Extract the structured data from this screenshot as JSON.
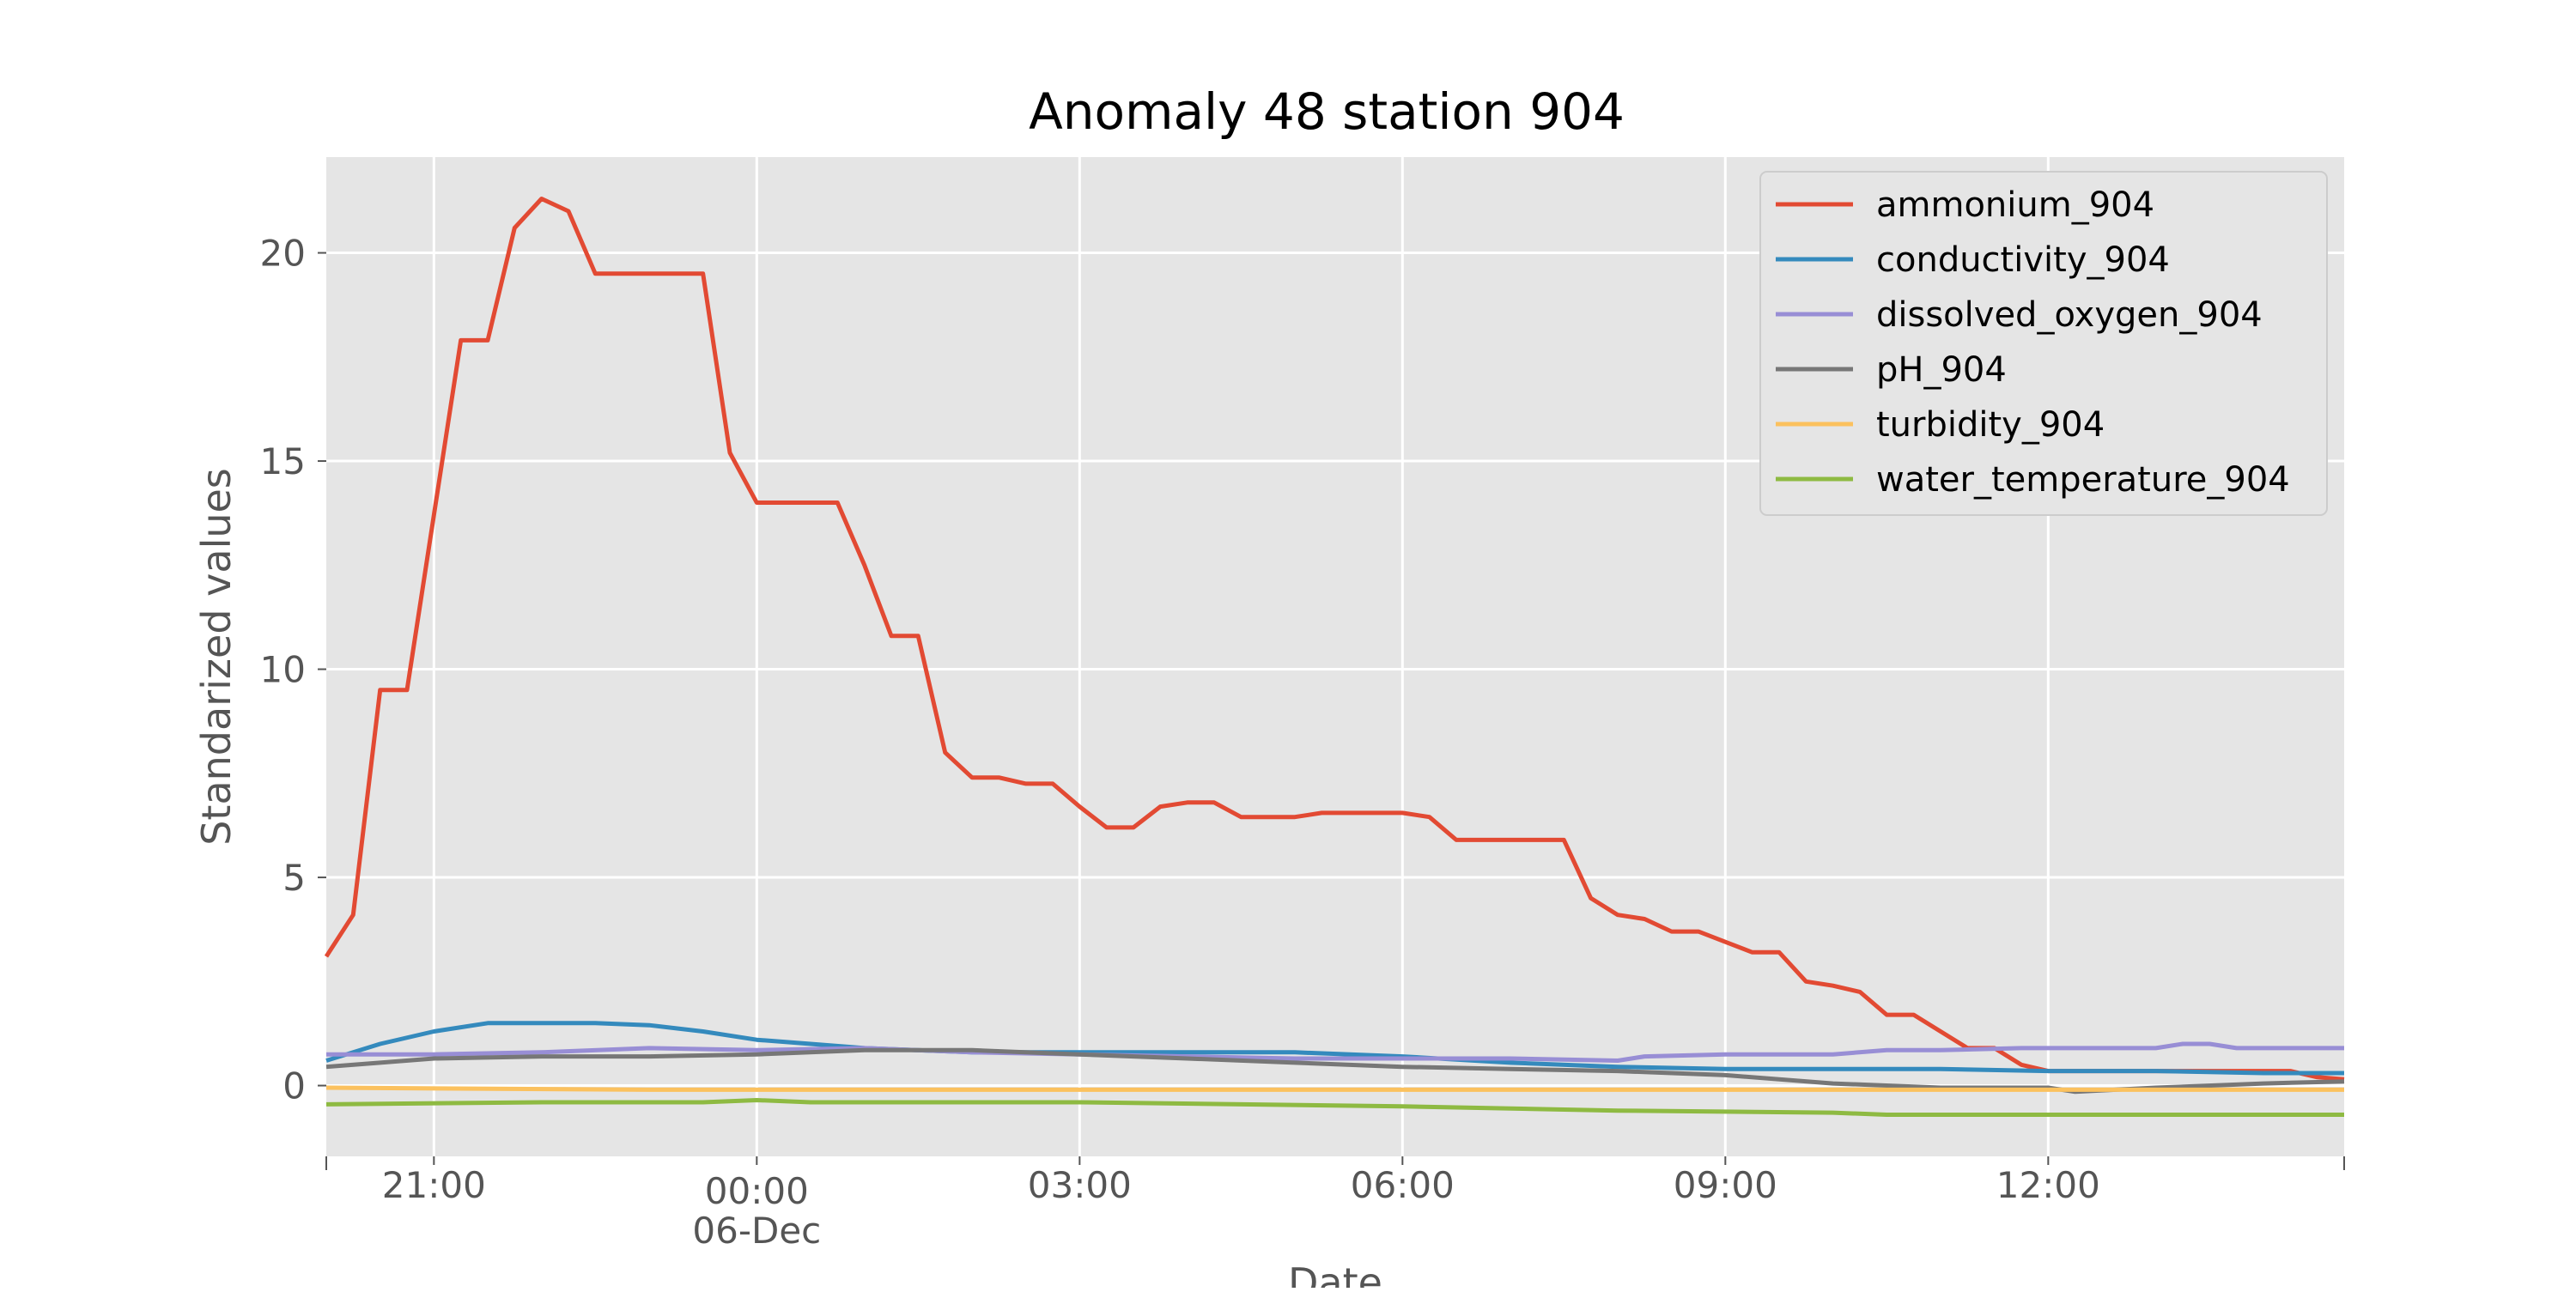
{
  "chart_data": {
    "type": "line",
    "title": "Anomaly 48 station 904",
    "xlabel": "Date",
    "ylabel": "Standarized values",
    "x_range": [
      "2021-12-05 20:00",
      "2021-12-06 14:45"
    ],
    "ylim": [
      -1.7,
      22.3
    ],
    "grid": true,
    "legend_position": "top-right",
    "x_ticks": [
      {
        "x": "2021-12-05 21:00",
        "label": "21:00",
        "sublabel": ""
      },
      {
        "x": "2021-12-06 00:00",
        "label": "00:00",
        "sublabel": "06-Dec"
      },
      {
        "x": "2021-12-06 03:00",
        "label": "03:00",
        "sublabel": ""
      },
      {
        "x": "2021-12-06 06:00",
        "label": "06:00",
        "sublabel": ""
      },
      {
        "x": "2021-12-06 09:00",
        "label": "09:00",
        "sublabel": ""
      },
      {
        "x": "2021-12-06 12:00",
        "label": "12:00",
        "sublabel": ""
      }
    ],
    "y_ticks": [
      0,
      5,
      10,
      15,
      20
    ],
    "series": [
      {
        "name": "ammonium_904",
        "color": "#E24A33",
        "points": [
          [
            "2021-12-05 20:00",
            3.1
          ],
          [
            "2021-12-05 20:15",
            4.1
          ],
          [
            "2021-12-05 20:30",
            9.5
          ],
          [
            "2021-12-05 20:45",
            9.5
          ],
          [
            "2021-12-05 21:00",
            13.7
          ],
          [
            "2021-12-05 21:15",
            17.9
          ],
          [
            "2021-12-05 21:30",
            17.9
          ],
          [
            "2021-12-05 21:45",
            20.6
          ],
          [
            "2021-12-05 22:00",
            21.3
          ],
          [
            "2021-12-05 22:15",
            21.0
          ],
          [
            "2021-12-05 22:30",
            19.5
          ],
          [
            "2021-12-05 22:45",
            19.5
          ],
          [
            "2021-12-05 23:00",
            19.5
          ],
          [
            "2021-12-05 23:15",
            19.5
          ],
          [
            "2021-12-05 23:30",
            19.5
          ],
          [
            "2021-12-05 23:45",
            15.2
          ],
          [
            "2021-12-06 00:00",
            14.0
          ],
          [
            "2021-12-06 00:15",
            14.0
          ],
          [
            "2021-12-06 00:30",
            14.0
          ],
          [
            "2021-12-06 00:45",
            14.0
          ],
          [
            "2021-12-06 01:00",
            12.5
          ],
          [
            "2021-12-06 01:15",
            10.8
          ],
          [
            "2021-12-06 01:30",
            10.8
          ],
          [
            "2021-12-06 01:45",
            8.0
          ],
          [
            "2021-12-06 02:00",
            7.4
          ],
          [
            "2021-12-06 02:15",
            7.4
          ],
          [
            "2021-12-06 02:30",
            7.25
          ],
          [
            "2021-12-06 02:45",
            7.25
          ],
          [
            "2021-12-06 03:00",
            6.7
          ],
          [
            "2021-12-06 03:15",
            6.2
          ],
          [
            "2021-12-06 03:30",
            6.2
          ],
          [
            "2021-12-06 03:45",
            6.7
          ],
          [
            "2021-12-06 04:00",
            6.8
          ],
          [
            "2021-12-06 04:15",
            6.8
          ],
          [
            "2021-12-06 04:30",
            6.45
          ],
          [
            "2021-12-06 04:45",
            6.45
          ],
          [
            "2021-12-06 05:00",
            6.45
          ],
          [
            "2021-12-06 05:15",
            6.55
          ],
          [
            "2021-12-06 05:30",
            6.55
          ],
          [
            "2021-12-06 05:45",
            6.55
          ],
          [
            "2021-12-06 06:00",
            6.55
          ],
          [
            "2021-12-06 06:15",
            6.45
          ],
          [
            "2021-12-06 06:30",
            5.9
          ],
          [
            "2021-12-06 06:45",
            5.9
          ],
          [
            "2021-12-06 07:00",
            5.9
          ],
          [
            "2021-12-06 07:15",
            5.9
          ],
          [
            "2021-12-06 07:30",
            5.9
          ],
          [
            "2021-12-06 07:45",
            4.5
          ],
          [
            "2021-12-06 08:00",
            4.1
          ],
          [
            "2021-12-06 08:15",
            4.0
          ],
          [
            "2021-12-06 08:30",
            3.7
          ],
          [
            "2021-12-06 08:45",
            3.7
          ],
          [
            "2021-12-06 09:00",
            3.45
          ],
          [
            "2021-12-06 09:15",
            3.2
          ],
          [
            "2021-12-06 09:30",
            3.2
          ],
          [
            "2021-12-06 09:45",
            2.5
          ],
          [
            "2021-12-06 10:00",
            2.4
          ],
          [
            "2021-12-06 10:15",
            2.25
          ],
          [
            "2021-12-06 10:30",
            1.7
          ],
          [
            "2021-12-06 10:45",
            1.7
          ],
          [
            "2021-12-06 11:00",
            1.3
          ],
          [
            "2021-12-06 11:15",
            0.9
          ],
          [
            "2021-12-06 11:30",
            0.9
          ],
          [
            "2021-12-06 11:45",
            0.5
          ],
          [
            "2021-12-06 12:00",
            0.35
          ],
          [
            "2021-12-06 12:15",
            0.35
          ],
          [
            "2021-12-06 12:30",
            0.35
          ],
          [
            "2021-12-06 12:45",
            0.35
          ],
          [
            "2021-12-06 13:00",
            0.35
          ],
          [
            "2021-12-06 13:15",
            0.35
          ],
          [
            "2021-12-06 13:30",
            0.35
          ],
          [
            "2021-12-06 13:45",
            0.35
          ],
          [
            "2021-12-06 14:00",
            0.35
          ],
          [
            "2021-12-06 14:15",
            0.35
          ],
          [
            "2021-12-06 14:30",
            0.2
          ],
          [
            "2021-12-06 14:45",
            0.15
          ]
        ]
      },
      {
        "name": "conductivity_904",
        "color": "#348ABD",
        "points": [
          [
            "2021-12-05 20:00",
            0.6
          ],
          [
            "2021-12-05 20:30",
            1.0
          ],
          [
            "2021-12-05 21:00",
            1.3
          ],
          [
            "2021-12-05 21:30",
            1.5
          ],
          [
            "2021-12-05 22:00",
            1.5
          ],
          [
            "2021-12-05 22:30",
            1.5
          ],
          [
            "2021-12-05 23:00",
            1.45
          ],
          [
            "2021-12-05 23:30",
            1.3
          ],
          [
            "2021-12-06 00:00",
            1.1
          ],
          [
            "2021-12-06 00:30",
            1.0
          ],
          [
            "2021-12-06 01:00",
            0.9
          ],
          [
            "2021-12-06 02:00",
            0.8
          ],
          [
            "2021-12-06 03:00",
            0.8
          ],
          [
            "2021-12-06 04:00",
            0.8
          ],
          [
            "2021-12-06 05:00",
            0.8
          ],
          [
            "2021-12-06 06:00",
            0.7
          ],
          [
            "2021-12-06 07:00",
            0.55
          ],
          [
            "2021-12-06 08:00",
            0.45
          ],
          [
            "2021-12-06 09:00",
            0.4
          ],
          [
            "2021-12-06 10:00",
            0.4
          ],
          [
            "2021-12-06 11:00",
            0.4
          ],
          [
            "2021-12-06 12:00",
            0.35
          ],
          [
            "2021-12-06 13:00",
            0.35
          ],
          [
            "2021-12-06 14:00",
            0.3
          ],
          [
            "2021-12-06 14:45",
            0.3
          ]
        ]
      },
      {
        "name": "dissolved_oxygen_904",
        "color": "#988ED5",
        "points": [
          [
            "2021-12-05 20:00",
            0.75
          ],
          [
            "2021-12-05 21:00",
            0.75
          ],
          [
            "2021-12-05 22:00",
            0.8
          ],
          [
            "2021-12-05 23:00",
            0.9
          ],
          [
            "2021-12-06 00:00",
            0.85
          ],
          [
            "2021-12-06 01:00",
            0.9
          ],
          [
            "2021-12-06 02:00",
            0.8
          ],
          [
            "2021-12-06 03:00",
            0.75
          ],
          [
            "2021-12-06 04:00",
            0.7
          ],
          [
            "2021-12-06 05:00",
            0.65
          ],
          [
            "2021-12-06 06:00",
            0.65
          ],
          [
            "2021-12-06 07:00",
            0.65
          ],
          [
            "2021-12-06 08:00",
            0.6
          ],
          [
            "2021-12-06 08:15",
            0.7
          ],
          [
            "2021-12-06 09:00",
            0.75
          ],
          [
            "2021-12-06 10:00",
            0.75
          ],
          [
            "2021-12-06 10:30",
            0.85
          ],
          [
            "2021-12-06 11:00",
            0.85
          ],
          [
            "2021-12-06 11:45",
            0.9
          ],
          [
            "2021-12-06 13:00",
            0.9
          ],
          [
            "2021-12-06 13:15",
            1.0
          ],
          [
            "2021-12-06 13:30",
            1.0
          ],
          [
            "2021-12-06 13:45",
            0.9
          ],
          [
            "2021-12-06 14:45",
            0.9
          ]
        ]
      },
      {
        "name": "pH_904",
        "color": "#777777",
        "points": [
          [
            "2021-12-05 20:00",
            0.45
          ],
          [
            "2021-12-05 20:30",
            0.55
          ],
          [
            "2021-12-05 21:00",
            0.65
          ],
          [
            "2021-12-05 22:00",
            0.7
          ],
          [
            "2021-12-05 23:00",
            0.7
          ],
          [
            "2021-12-06 00:00",
            0.75
          ],
          [
            "2021-12-06 01:00",
            0.85
          ],
          [
            "2021-12-06 02:00",
            0.85
          ],
          [
            "2021-12-06 03:00",
            0.75
          ],
          [
            "2021-12-06 04:00",
            0.65
          ],
          [
            "2021-12-06 05:00",
            0.55
          ],
          [
            "2021-12-06 06:00",
            0.45
          ],
          [
            "2021-12-06 07:00",
            0.4
          ],
          [
            "2021-12-06 08:00",
            0.35
          ],
          [
            "2021-12-06 09:00",
            0.25
          ],
          [
            "2021-12-06 10:00",
            0.05
          ],
          [
            "2021-12-06 11:00",
            -0.05
          ],
          [
            "2021-12-06 12:00",
            -0.05
          ],
          [
            "2021-12-06 12:15",
            -0.15
          ],
          [
            "2021-12-06 13:00",
            -0.05
          ],
          [
            "2021-12-06 14:00",
            0.05
          ],
          [
            "2021-12-06 14:45",
            0.1
          ]
        ]
      },
      {
        "name": "turbidity_904",
        "color": "#FBC15E",
        "points": [
          [
            "2021-12-05 20:00",
            -0.05
          ],
          [
            "2021-12-05 23:00",
            -0.1
          ],
          [
            "2021-12-06 02:00",
            -0.1
          ],
          [
            "2021-12-06 06:00",
            -0.1
          ],
          [
            "2021-12-06 10:00",
            -0.1
          ],
          [
            "2021-12-06 12:00",
            -0.1
          ],
          [
            "2021-12-06 14:45",
            -0.1
          ]
        ]
      },
      {
        "name": "water_temperature_904",
        "color": "#8EBA42",
        "points": [
          [
            "2021-12-05 20:00",
            -0.45
          ],
          [
            "2021-12-05 22:00",
            -0.4
          ],
          [
            "2021-12-05 23:30",
            -0.4
          ],
          [
            "2021-12-06 00:00",
            -0.35
          ],
          [
            "2021-12-06 00:30",
            -0.4
          ],
          [
            "2021-12-06 03:00",
            -0.4
          ],
          [
            "2021-12-06 06:00",
            -0.5
          ],
          [
            "2021-12-06 08:00",
            -0.6
          ],
          [
            "2021-12-06 10:00",
            -0.65
          ],
          [
            "2021-12-06 10:30",
            -0.7
          ],
          [
            "2021-12-06 14:45",
            -0.7
          ]
        ]
      }
    ]
  }
}
